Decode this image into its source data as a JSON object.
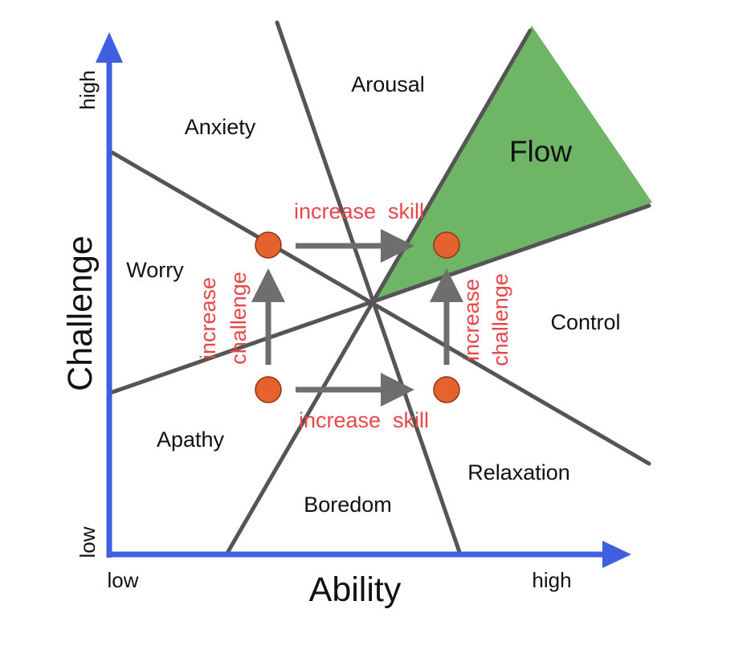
{
  "axes": {
    "x_title": "Ability",
    "x_low": "low",
    "x_high": "high",
    "y_title": "Challenge",
    "y_low": "low",
    "y_high": "high"
  },
  "zones": {
    "arousal": "Arousal",
    "anxiety": "Anxiety",
    "flow": "Flow",
    "worry": "Worry",
    "control": "Control",
    "apathy": "Apathy",
    "relaxation": "Relaxation",
    "boredom": "Boredom"
  },
  "annotations": {
    "increase_skill_top": "increase  skill",
    "increase_skill_bottom": "increase  skill",
    "increase_challenge_left_1": "increase",
    "increase_challenge_left_2": "challenge",
    "increase_challenge_right_1": "increase",
    "increase_challenge_right_2": "challenge"
  },
  "colors": {
    "axis": "#3f5ee0",
    "boundary_lines": "#555555",
    "flow_region": "#6fb566",
    "state_dot": "#e5622e",
    "annotation_text": "#e8474a",
    "transition_arrow": "#6e6e6e"
  }
}
